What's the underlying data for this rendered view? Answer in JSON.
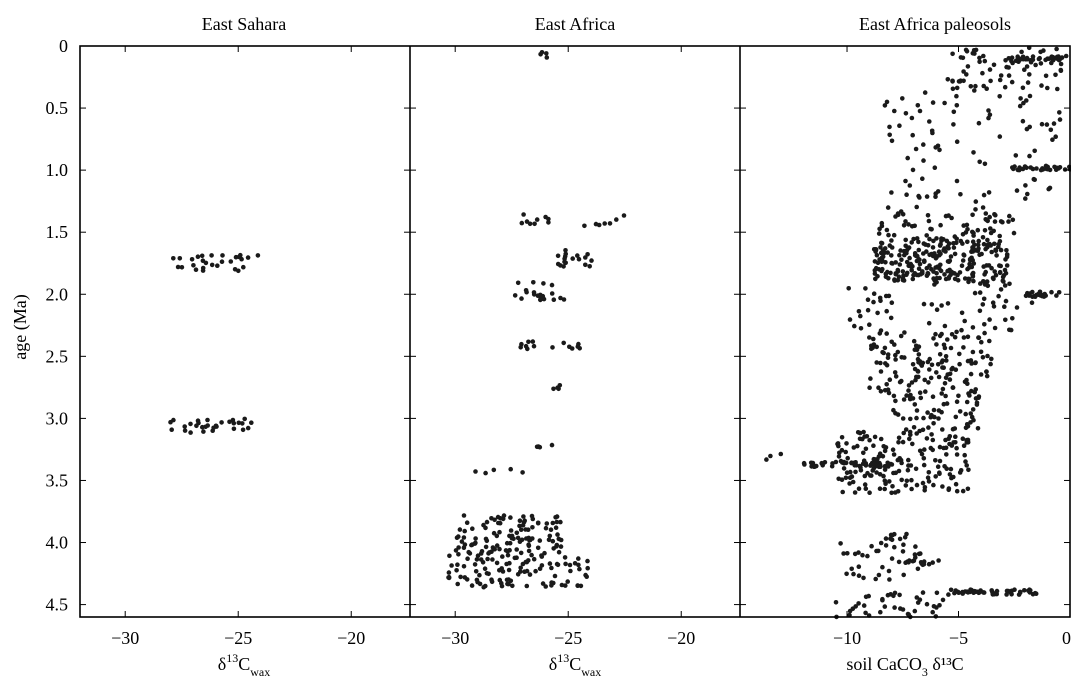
{
  "chart_data": {
    "type": "scatter",
    "ylabel": "age (Ma)",
    "ylim": [
      4.6,
      0
    ],
    "yticks": [
      "0",
      "0.5",
      "1.0",
      "1.5",
      "2.0",
      "2.5",
      "3.0",
      "3.5",
      "4.0",
      "4.5"
    ],
    "colors": {
      "points": "#1a1a1a",
      "axes": "#000000",
      "background": "#ffffff"
    },
    "panels": [
      {
        "title": "East Sahara",
        "xlabel": {
          "base": "δ",
          "sup": "13",
          "mid": "C",
          "sub": "wax",
          "tail": ""
        },
        "xlim": [
          -32,
          -17.4
        ],
        "xticks": [
          "−30",
          "−25",
          "−20"
        ],
        "clusters": [
          {
            "x": [
              -28,
              -24
            ],
            "y": [
              1.68,
              1.82
            ],
            "n": 28,
            "seed": 11
          },
          {
            "x": [
              -28,
              -24.3
            ],
            "y": [
              3.0,
              3.12
            ],
            "n": 30,
            "seed": 12
          }
        ]
      },
      {
        "title": "East Africa",
        "xlabel": {
          "base": "δ",
          "sup": "13",
          "mid": "C",
          "sub": "wax",
          "tail": ""
        },
        "xlim": [
          -32,
          -17.4
        ],
        "xticks": [
          "−30",
          "−25",
          "−20"
        ],
        "clusters": [
          {
            "x": [
              -26.5,
              -25.1
            ],
            "y": [
              0.04,
              0.1
            ],
            "n": 4,
            "seed": 21
          },
          {
            "x": [
              -27.2,
              -22.3
            ],
            "y": [
              1.35,
              1.45
            ],
            "n": 16,
            "seed": 22
          },
          {
            "x": [
              -25.6,
              -23.7
            ],
            "y": [
              1.64,
              1.79
            ],
            "n": 18,
            "seed": 23
          },
          {
            "x": [
              -27.5,
              -24.9
            ],
            "y": [
              1.9,
              2.05
            ],
            "n": 20,
            "seed": 24
          },
          {
            "x": [
              -27.2,
              -24.4
            ],
            "y": [
              2.38,
              2.45
            ],
            "n": 14,
            "seed": 25
          },
          {
            "x": [
              -25.8,
              -25.2
            ],
            "y": [
              2.73,
              2.78
            ],
            "n": 4,
            "seed": 26
          },
          {
            "x": [
              -26.6,
              -25.7
            ],
            "y": [
              3.2,
              3.24
            ],
            "n": 4,
            "seed": 27
          },
          {
            "x": [
              -29.2,
              -27
            ],
            "y": [
              3.4,
              3.45
            ],
            "n": 5,
            "seed": 28
          },
          {
            "x": [
              -30,
              -25.2
            ],
            "y": [
              3.78,
              4.1
            ],
            "n": 110,
            "seed": 29
          },
          {
            "x": [
              -30.3,
              -24
            ],
            "y": [
              4.1,
              4.36
            ],
            "n": 100,
            "seed": 30
          }
        ]
      },
      {
        "title": "East Africa paleosols",
        "xlabel": {
          "base": "soil CaCO",
          "sup": "",
          "mid": "",
          "sub": "3",
          "tail": " δ¹³C"
        },
        "xlim": [
          -14.8,
          0
        ],
        "xticks": [
          "−10",
          "−5",
          "0"
        ],
        "clusters": [
          {
            "x": [
              -5.5,
              -0.3
            ],
            "y": [
              0,
              0.35
            ],
            "n": 70,
            "seed": 31
          },
          {
            "x": [
              -2.8,
              0
            ],
            "y": [
              0.08,
              0.12
            ],
            "n": 30,
            "seed": 32
          },
          {
            "x": [
              -8.4,
              0
            ],
            "y": [
              0.35,
              1.3
            ],
            "n": 90,
            "seed": 33
          },
          {
            "x": [
              -2.6,
              0
            ],
            "y": [
              0.97,
              1.0
            ],
            "n": 25,
            "seed": 34
          },
          {
            "x": [
              -9,
              -2.5
            ],
            "y": [
              1.3,
              1.55
            ],
            "n": 60,
            "seed": 35
          },
          {
            "x": [
              -8.8,
              -2.8
            ],
            "y": [
              1.55,
              1.9
            ],
            "n": 260,
            "seed": 36
          },
          {
            "x": [
              -2,
              0
            ],
            "y": [
              1.98,
              2.02
            ],
            "n": 22,
            "seed": 37
          },
          {
            "x": [
              -10.2,
              -1.5
            ],
            "y": [
              1.9,
              2.3
            ],
            "n": 60,
            "seed": 38
          },
          {
            "x": [
              -9,
              -3.5
            ],
            "y": [
              2.3,
              2.8
            ],
            "n": 140,
            "seed": 39
          },
          {
            "x": [
              -8,
              -4
            ],
            "y": [
              2.8,
              3.1
            ],
            "n": 60,
            "seed": 40
          },
          {
            "x": [
              -10.5,
              -4.5
            ],
            "y": [
              3.1,
              3.6
            ],
            "n": 180,
            "seed": 41
          },
          {
            "x": [
              -12,
              -8
            ],
            "y": [
              3.35,
              3.39
            ],
            "n": 40,
            "seed": 42
          },
          {
            "x": [
              -8.3,
              -7.2
            ],
            "y": [
              3.93,
              3.98
            ],
            "n": 10,
            "seed": 43
          },
          {
            "x": [
              -10.5,
              -6.5
            ],
            "y": [
              4.0,
              4.3
            ],
            "n": 35,
            "seed": 44
          },
          {
            "x": [
              -7.8,
              -5.8
            ],
            "y": [
              4.14,
              4.18
            ],
            "n": 14,
            "seed": 45
          },
          {
            "x": [
              -5.5,
              -1.5
            ],
            "y": [
              4.38,
              4.42
            ],
            "n": 50,
            "seed": 46
          },
          {
            "x": [
              -10.5,
              -5.5
            ],
            "y": [
              4.4,
              4.6
            ],
            "n": 40,
            "seed": 47
          },
          {
            "x": [
              -14,
              -12.5
            ],
            "y": [
              3.18,
              3.42
            ],
            "n": 3,
            "seed": 48
          }
        ]
      }
    ]
  }
}
